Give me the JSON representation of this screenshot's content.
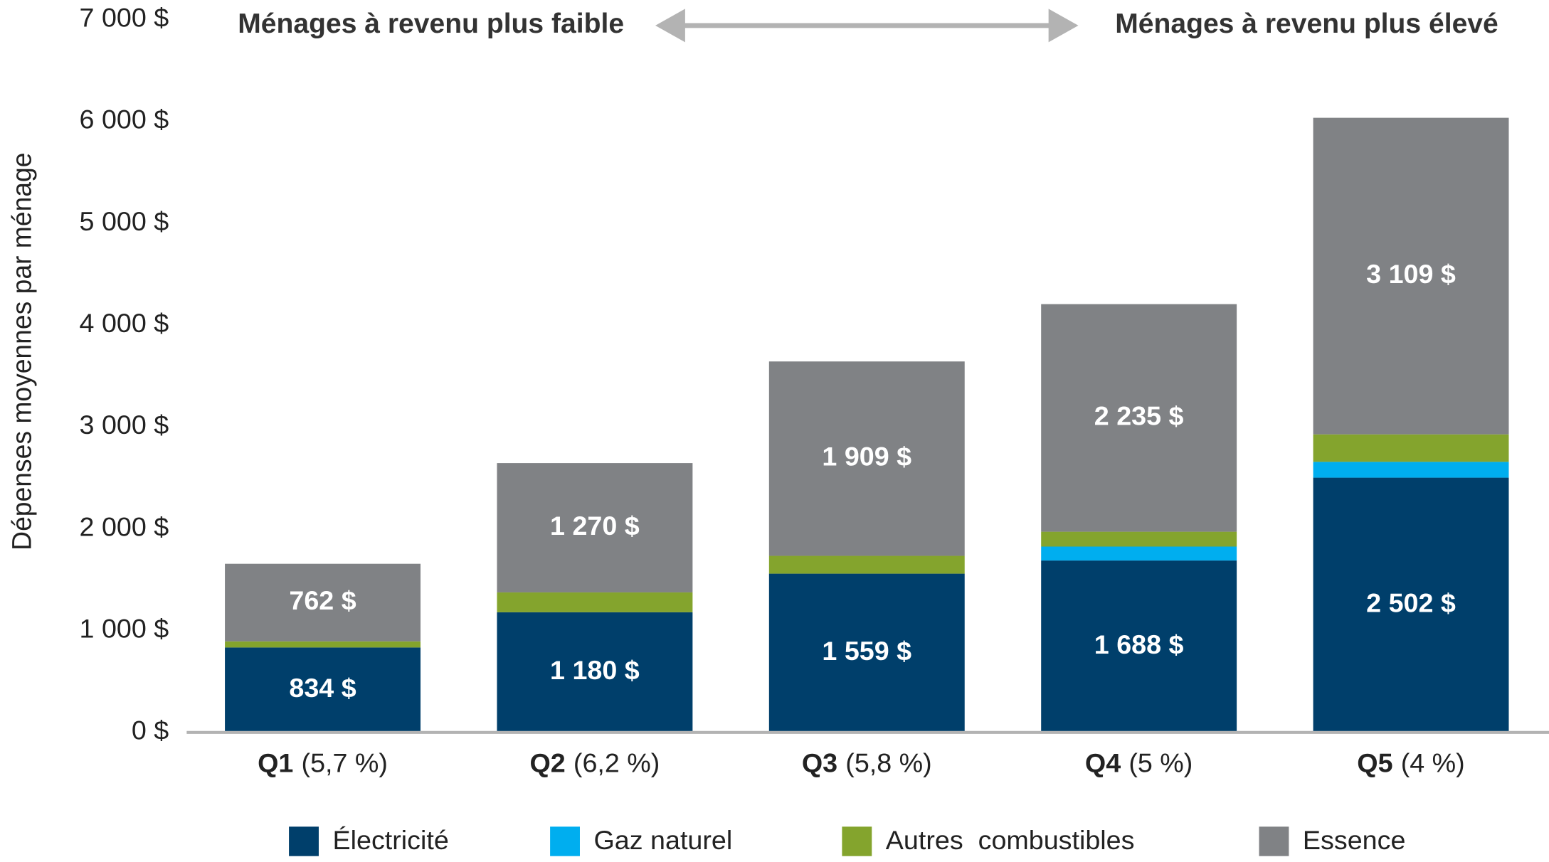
{
  "chart_data": {
    "type": "stacked_bar",
    "ylabel": "Dépenses moyennes par ménage",
    "annotations": [
      "Ménages à revenu plus faible",
      "Ménages à revenu plus élevé"
    ],
    "categories": [
      "Q1",
      "Q2",
      "Q3",
      "Q4",
      "Q5"
    ],
    "category_notes": [
      "(5,7 %)",
      "(6,2 %)",
      "(5,8 %)",
      "(5 %)",
      "(4 %)"
    ],
    "series": [
      {
        "name": "Électricité",
        "color": "#003f6b",
        "values": [
          834,
          1180,
          1559,
          1688,
          2502
        ],
        "value_labels": [
          "834 $",
          "1 180 $",
          "1 559 $",
          "1 688 $",
          "2 502 $"
        ]
      },
      {
        "name": "Gaz naturel",
        "color": "#00aeef",
        "values": [
          0,
          0,
          0,
          137,
          155
        ]
      },
      {
        "name": "Autres  combustibles",
        "color": "#84a42d",
        "values": [
          60,
          195,
          175,
          146,
          270
        ]
      },
      {
        "name": "Essence",
        "color": "#808285",
        "values": [
          762,
          1270,
          1909,
          2235,
          3109
        ],
        "value_labels": [
          "762 $",
          "1 270 $",
          "1 909 $",
          "2 235 $",
          "3 109 $"
        ]
      }
    ],
    "ylim": [
      0,
      7000
    ],
    "yticks": [
      {
        "value": 0,
        "label": "0 $"
      },
      {
        "value": 1000,
        "label": "1 000 $"
      },
      {
        "value": 2000,
        "label": "2 000 $"
      },
      {
        "value": 3000,
        "label": "3 000 $"
      },
      {
        "value": 4000,
        "label": "4 000 $"
      },
      {
        "value": 5000,
        "label": "5 000 $"
      },
      {
        "value": 6000,
        "label": "6 000 $"
      },
      {
        "value": 7000,
        "label": "7 000 $"
      }
    ],
    "legend": "bottom"
  }
}
